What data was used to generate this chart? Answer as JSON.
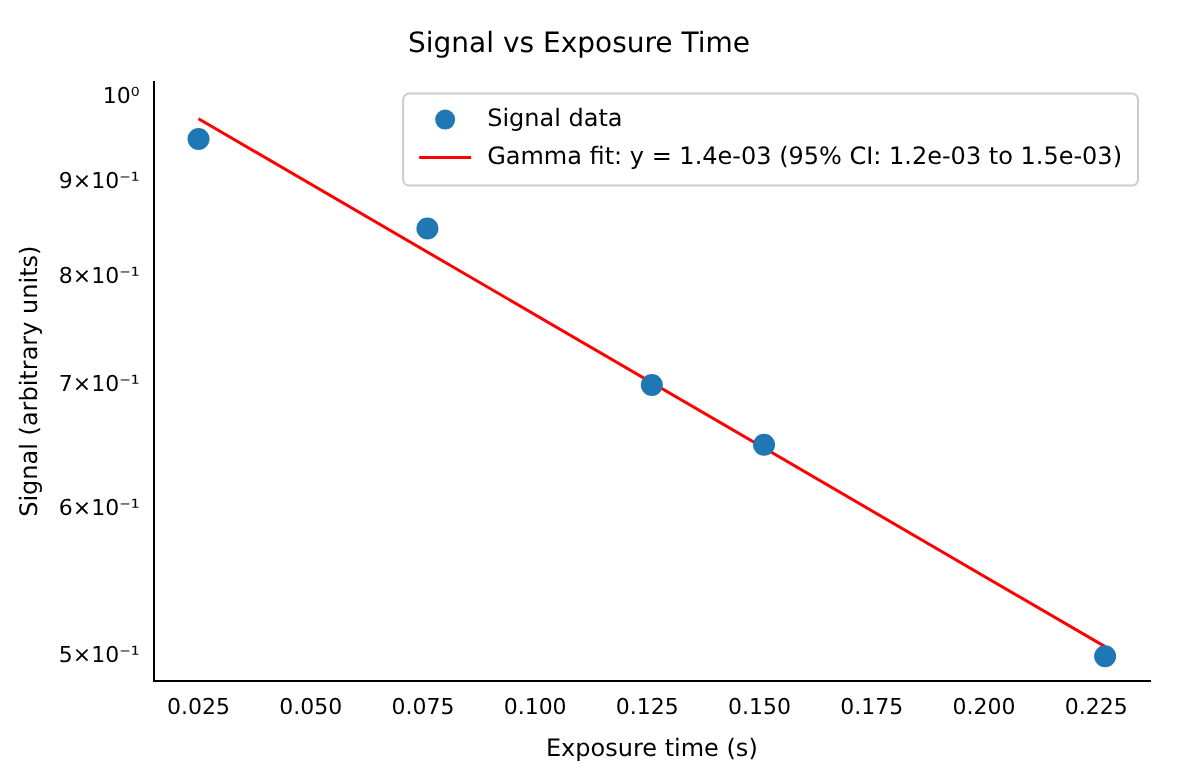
{
  "chart_data": {
    "type": "scatter",
    "title": "Signal vs Exposure Time",
    "xlabel": "Exposure time (s)",
    "ylabel": "Signal (arbitrary units)",
    "series": [
      {
        "name": "Signal data",
        "color": "#1f77b4",
        "x": [
          0.025,
          0.076,
          0.126,
          0.151,
          0.227
        ],
        "values": [
          0.95,
          0.85,
          0.7,
          0.65,
          0.5
        ],
        "marker": "circle"
      },
      {
        "name": "Gamma fit: y = 1.4e-03 (95% CI: 1.2e-03 to 1.5e-03)",
        "type": "line",
        "color": "#ff0000",
        "x": [
          0.025,
          0.227
        ],
        "values": [
          0.974,
          0.506
        ],
        "marker": "none",
        "line_style": "solid"
      }
    ],
    "log": "y",
    "grid": false,
    "legend": "top right",
    "xlim": [
      0.015,
      0.237
    ],
    "xticks": [
      0.025,
      {
        "value": 0.05,
        "label": "0.050"
      },
      0.075,
      {
        "value": 0.1,
        "label": "0.100"
      },
      0.125,
      {
        "value": 0.15,
        "label": "0.150"
      },
      0.175,
      {
        "value": 0.2,
        "label": "0.200"
      },
      0.225
    ],
    "ylim": [
      0.485,
      1.02
    ],
    "yticks": [
      {
        "value": 0.5,
        "label": "5×10⁻¹"
      },
      {
        "value": 0.6,
        "label": "6×10⁻¹"
      },
      {
        "value": 0.7,
        "label": "7×10⁻¹"
      },
      {
        "value": 0.8,
        "label": "8×10⁻¹"
      },
      {
        "value": 0.9,
        "label": "9×10⁻¹"
      },
      {
        "value": 1,
        "label": "10⁰"
      }
    ]
  }
}
